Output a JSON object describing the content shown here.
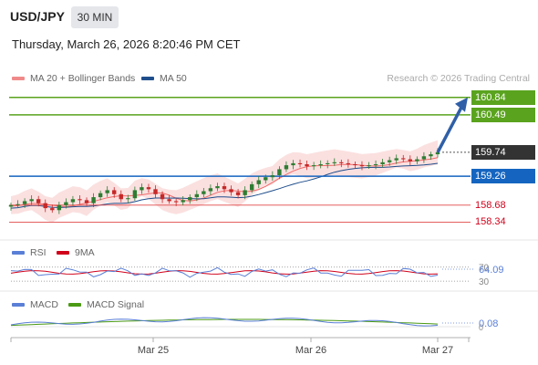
{
  "header": {
    "symbol": "USD/JPY",
    "timeframe": "30 MIN",
    "datetime": "Thursday, March 26, 2026 8:20:46 PM CET"
  },
  "price_legend": {
    "ma20_label": "MA 20 + Bollinger Bands",
    "ma50_label": "MA 50",
    "credit": "Research © 2026 Trading Central"
  },
  "rsi_legend": {
    "rsi_label": "RSI",
    "ma_label": "9MA"
  },
  "macd_legend": {
    "macd_label": "MACD",
    "signal_label": "MACD Signal"
  },
  "colors": {
    "green_level": "#5aa31e",
    "blue_level": "#1565c0",
    "red_level": "#e04848",
    "current": "#333333",
    "ma20": "#f06b6b",
    "ma50": "#1f4e8c",
    "rsi": "#5a7fd6",
    "rsi_ma": "#d0021b",
    "macd": "#5a7fd6",
    "signal": "#4a9a14",
    "arrow": "#2f5fa7",
    "candle_up": "#2e7d32",
    "candle_down": "#c62828"
  },
  "chart_data": {
    "type": "candlestick",
    "x_ticks": [
      "Mar 25",
      "Mar 26",
      "Mar 27"
    ],
    "price_range": [
      158.0,
      161.0
    ],
    "levels": [
      {
        "label": "160.84",
        "value": 160.84,
        "style": "green-box"
      },
      {
        "label": "160.49",
        "value": 160.49,
        "style": "green-box"
      },
      {
        "label": "159.74",
        "value": 159.74,
        "style": "current-box"
      },
      {
        "label": "159.26",
        "value": 159.26,
        "style": "blue-box"
      },
      {
        "label": "158.68",
        "value": 158.68,
        "style": "red-text"
      },
      {
        "label": "158.34",
        "value": 158.34,
        "style": "red-text"
      }
    ],
    "close_path": [
      158.68,
      158.7,
      158.76,
      158.8,
      158.72,
      158.62,
      158.58,
      158.68,
      158.74,
      158.8,
      158.78,
      158.72,
      158.84,
      158.92,
      158.98,
      158.9,
      158.8,
      158.82,
      158.98,
      159.04,
      159.0,
      158.9,
      158.8,
      158.76,
      158.74,
      158.78,
      158.84,
      158.9,
      158.96,
      159.02,
      159.06,
      159.0,
      158.94,
      158.88,
      158.98,
      159.1,
      159.18,
      159.24,
      159.28,
      159.4,
      159.48,
      159.52,
      159.5,
      159.46,
      159.48,
      159.5,
      159.52,
      159.54,
      159.52,
      159.5,
      159.48,
      159.46,
      159.48,
      159.5,
      159.54,
      159.58,
      159.62,
      159.6,
      159.56,
      159.6,
      159.66,
      159.7,
      159.74
    ],
    "rsi_value": "64.09",
    "rsi_ticks": [
      "70",
      "30"
    ],
    "macd_value": "0.08",
    "macd_tick": "0",
    "forecast_target": 160.84
  }
}
